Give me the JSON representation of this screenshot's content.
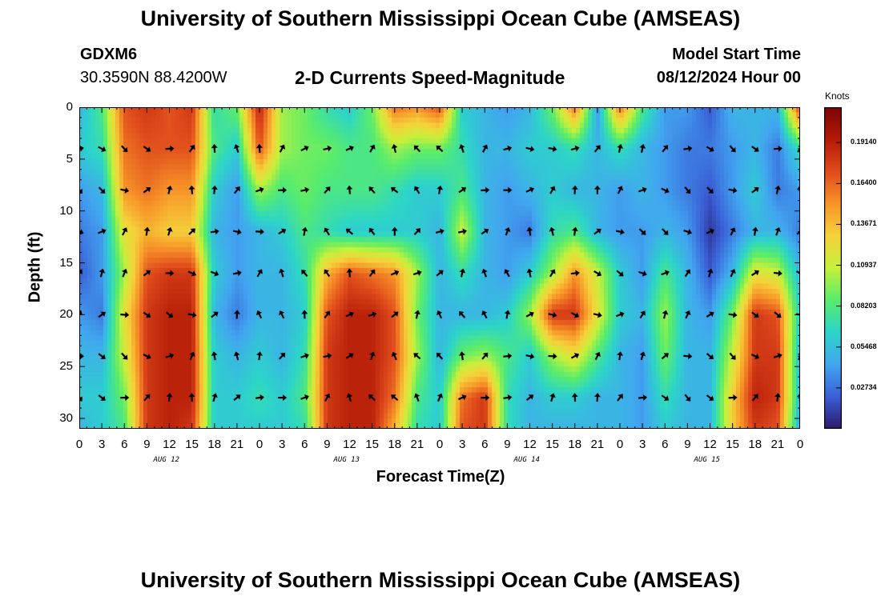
{
  "header": {
    "title": "University of Southern Mississippi Ocean Cube (AMSEAS)",
    "station_id": "GDXM6",
    "station_coords": "30.3590N  88.4200W",
    "plot_title": "2-D Currents Speed-Magnitude",
    "model_start_label": "Model Start Time",
    "model_start_value": "08/12/2024 Hour 00"
  },
  "footer": {
    "title_repeat": "University of Southern Mississippi Ocean Cube (AMSEAS)"
  },
  "chart_data": {
    "type": "heatmap",
    "xlabel": "Forecast Time(Z)",
    "ylabel": "Depth (ft)",
    "x_hours_range": [
      0,
      96
    ],
    "y_depth_range": [
      0,
      31
    ],
    "x_tick_labels": [
      "0",
      "3",
      "6",
      "9",
      "12",
      "15",
      "18",
      "21",
      "0",
      "3",
      "6",
      "9",
      "12",
      "15",
      "18",
      "21",
      "0",
      "3",
      "6",
      "9",
      "12",
      "15",
      "18",
      "21",
      "0",
      "3",
      "6",
      "9",
      "12",
      "15",
      "18",
      "21",
      "0"
    ],
    "y_ticks": [
      0,
      5,
      10,
      15,
      20,
      25,
      30
    ],
    "day_labels": [
      {
        "text": "AUG 12",
        "hour": 12
      },
      {
        "text": "AUG 13",
        "hour": 36
      },
      {
        "text": "AUG 14",
        "hour": 60
      },
      {
        "text": "AUG 15",
        "hour": 84
      }
    ],
    "colorbar": {
      "label": "Knots",
      "range": [
        0,
        0.215
      ],
      "ticks": [
        "0.19140",
        "0.16400",
        "0.13671",
        "0.10937",
        "0.08203",
        "0.05468",
        "0.02734"
      ],
      "tick_values": [
        0.1914,
        0.164,
        0.13671,
        0.10937,
        0.08203,
        0.05468,
        0.02734
      ],
      "colormap": [
        "#2a1b6b",
        "#3a5fd6",
        "#41a6f0",
        "#2cd5c8",
        "#58ec6b",
        "#c6f03a",
        "#f5d23a",
        "#f79428",
        "#e04b1c",
        "#b31a07",
        "#7a0403"
      ]
    },
    "speed_depths_ft": [
      0,
      4,
      8,
      12,
      16,
      20,
      24,
      28,
      31
    ],
    "speed_hours": [
      0,
      3,
      6,
      9,
      12,
      15,
      18,
      21,
      24,
      27,
      30,
      33,
      36,
      39,
      42,
      45,
      48,
      51,
      54,
      57,
      60,
      63,
      66,
      69,
      72,
      75,
      78,
      81,
      84,
      87,
      90,
      93,
      96
    ],
    "speed_knots": [
      [
        0.05,
        0.08,
        0.17,
        0.18,
        0.17,
        0.18,
        0.07,
        0.09,
        0.19,
        0.1,
        0.09,
        0.07,
        0.06,
        0.09,
        0.16,
        0.15,
        0.17,
        0.06,
        0.05,
        0.04,
        0.05,
        0.09,
        0.16,
        0.04,
        0.16,
        0.08,
        0.04,
        0.04,
        0.02,
        0.05,
        0.05,
        0.05,
        0.18
      ],
      [
        0.06,
        0.07,
        0.16,
        0.17,
        0.17,
        0.17,
        0.08,
        0.06,
        0.17,
        0.1,
        0.09,
        0.09,
        0.08,
        0.08,
        0.1,
        0.09,
        0.09,
        0.07,
        0.05,
        0.05,
        0.06,
        0.06,
        0.07,
        0.05,
        0.07,
        0.05,
        0.04,
        0.03,
        0.03,
        0.04,
        0.05,
        0.03,
        0.07
      ],
      [
        0.04,
        0.05,
        0.15,
        0.16,
        0.15,
        0.15,
        0.06,
        0.04,
        0.1,
        0.08,
        0.09,
        0.08,
        0.08,
        0.08,
        0.07,
        0.06,
        0.06,
        0.08,
        0.05,
        0.04,
        0.05,
        0.06,
        0.05,
        0.05,
        0.04,
        0.05,
        0.04,
        0.03,
        0.02,
        0.04,
        0.06,
        0.03,
        0.04
      ],
      [
        0.03,
        0.04,
        0.12,
        0.14,
        0.13,
        0.13,
        0.05,
        0.04,
        0.05,
        0.06,
        0.08,
        0.07,
        0.06,
        0.06,
        0.06,
        0.06,
        0.05,
        0.11,
        0.05,
        0.04,
        0.03,
        0.07,
        0.08,
        0.05,
        0.04,
        0.04,
        0.05,
        0.04,
        0.01,
        0.03,
        0.05,
        0.05,
        0.03
      ],
      [
        0.02,
        0.04,
        0.1,
        0.17,
        0.18,
        0.18,
        0.06,
        0.04,
        0.05,
        0.05,
        0.07,
        0.14,
        0.17,
        0.16,
        0.15,
        0.1,
        0.05,
        0.07,
        0.05,
        0.04,
        0.06,
        0.1,
        0.15,
        0.11,
        0.06,
        0.04,
        0.08,
        0.05,
        0.02,
        0.05,
        0.12,
        0.11,
        0.05
      ],
      [
        0.04,
        0.03,
        0.12,
        0.18,
        0.19,
        0.19,
        0.05,
        0.03,
        0.05,
        0.05,
        0.06,
        0.17,
        0.19,
        0.19,
        0.17,
        0.09,
        0.05,
        0.05,
        0.05,
        0.06,
        0.1,
        0.18,
        0.18,
        0.12,
        0.06,
        0.05,
        0.1,
        0.05,
        0.04,
        0.09,
        0.18,
        0.17,
        0.06
      ],
      [
        0.05,
        0.05,
        0.11,
        0.18,
        0.19,
        0.19,
        0.06,
        0.05,
        0.06,
        0.05,
        0.07,
        0.18,
        0.19,
        0.19,
        0.17,
        0.1,
        0.05,
        0.09,
        0.1,
        0.08,
        0.06,
        0.1,
        0.12,
        0.08,
        0.05,
        0.04,
        0.09,
        0.05,
        0.05,
        0.11,
        0.18,
        0.18,
        0.05
      ],
      [
        0.06,
        0.06,
        0.09,
        0.18,
        0.19,
        0.19,
        0.06,
        0.06,
        0.07,
        0.06,
        0.08,
        0.18,
        0.19,
        0.19,
        0.16,
        0.08,
        0.06,
        0.16,
        0.18,
        0.07,
        0.05,
        0.06,
        0.06,
        0.05,
        0.05,
        0.04,
        0.07,
        0.05,
        0.05,
        0.13,
        0.19,
        0.18,
        0.05
      ],
      [
        0.05,
        0.06,
        0.08,
        0.18,
        0.19,
        0.18,
        0.06,
        0.06,
        0.06,
        0.06,
        0.07,
        0.18,
        0.19,
        0.19,
        0.14,
        0.07,
        0.06,
        0.17,
        0.18,
        0.07,
        0.05,
        0.05,
        0.05,
        0.05,
        0.05,
        0.04,
        0.06,
        0.05,
        0.05,
        0.13,
        0.18,
        0.17,
        0.04
      ]
    ]
  }
}
